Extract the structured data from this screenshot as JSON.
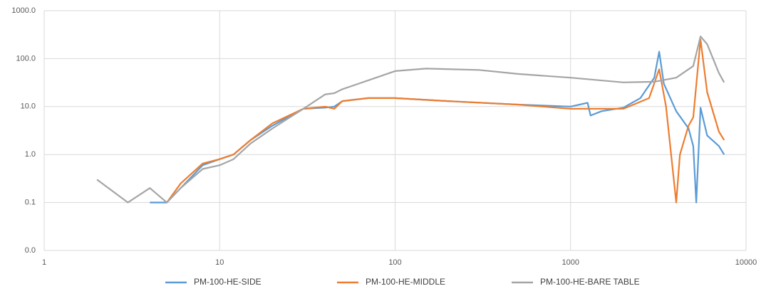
{
  "chart_data": {
    "type": "line",
    "xscale": "log",
    "yscale": "log",
    "xlim": [
      1,
      10000
    ],
    "xticks": [
      1,
      10,
      100,
      1000,
      10000
    ],
    "ylim": [
      0.01,
      1000
    ],
    "yticks": [
      {
        "value": 0.01,
        "label": "0.0"
      },
      {
        "value": 0.1,
        "label": "0.1"
      },
      {
        "value": 1,
        "label": "1.0"
      },
      {
        "value": 10,
        "label": "10.0"
      },
      {
        "value": 100,
        "label": "100.0"
      },
      {
        "value": 1000,
        "label": "1000.0"
      }
    ],
    "grid": true,
    "legend": "bottom",
    "series": [
      {
        "name": "PM-100-HE-SIDE",
        "color": "#5b9bd5",
        "x": [
          4,
          5,
          6,
          8,
          10,
          12,
          15,
          20,
          30,
          40,
          45,
          50,
          70,
          100,
          200,
          500,
          1000,
          1250,
          1300,
          1500,
          2000,
          2500,
          3000,
          3200,
          3400,
          4000,
          4700,
          5000,
          5200,
          5500,
          6000,
          7000,
          7500
        ],
        "values": [
          0.1,
          0.1,
          0.2,
          0.6,
          0.8,
          1.0,
          2,
          4,
          9,
          9.5,
          10,
          13,
          15,
          15,
          13,
          11,
          10,
          12,
          6.5,
          8,
          9.5,
          15,
          40,
          140,
          30,
          8,
          3.5,
          1.5,
          0.1,
          9.5,
          2.5,
          1.5,
          1.0
        ]
      },
      {
        "name": "PM-100-HE-MIDDLE",
        "color": "#ed7d31",
        "x": [
          5,
          6,
          8,
          10,
          12,
          15,
          20,
          30,
          40,
          45,
          50,
          70,
          100,
          200,
          500,
          1000,
          2000,
          2800,
          3200,
          3500,
          4000,
          4200,
          4700,
          5000,
          5500,
          6000,
          7000,
          7500
        ],
        "values": [
          0.1,
          0.25,
          0.65,
          0.8,
          1.0,
          2,
          4.5,
          9,
          10,
          9,
          13,
          15,
          15,
          13,
          11,
          9,
          9,
          15,
          60,
          10,
          0.1,
          1,
          4,
          6,
          250,
          20,
          3,
          2
        ]
      },
      {
        "name": "PM-100-HE-BARE TABLE",
        "color": "#a5a5a5",
        "x": [
          2,
          3,
          4,
          5,
          6,
          8,
          10,
          12,
          15,
          20,
          30,
          40,
          45,
          50,
          70,
          100,
          150,
          300,
          500,
          1000,
          2000,
          3000,
          4000,
          5000,
          5500,
          6000,
          7000,
          7500
        ],
        "values": [
          0.3,
          0.1,
          0.2,
          0.1,
          0.2,
          0.5,
          0.6,
          0.8,
          1.7,
          3.5,
          9,
          18,
          19,
          23,
          35,
          55,
          62,
          58,
          48,
          40,
          32,
          33,
          40,
          70,
          290,
          200,
          50,
          32
        ]
      }
    ]
  }
}
